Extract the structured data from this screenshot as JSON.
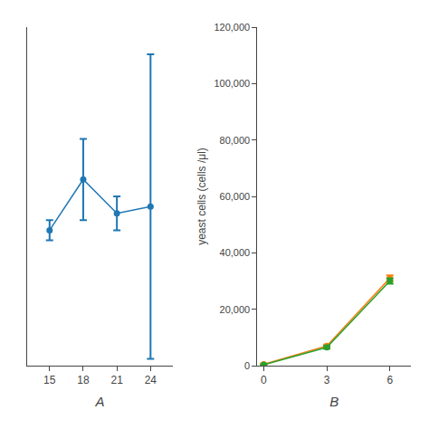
{
  "chart_data": [
    {
      "type": "line",
      "xlabel": "A",
      "x": [
        15,
        18,
        21,
        24
      ],
      "values": [
        100000,
        115000,
        105000,
        107000
      ],
      "error_low": [
        3000,
        12000,
        5000,
        45000
      ],
      "error_high": [
        3000,
        12000,
        5000,
        45000
      ],
      "xlim": [
        13,
        26
      ],
      "ylim": [
        60000,
        160000
      ],
      "xticks": [
        15,
        18,
        21,
        24
      ],
      "tick_labels": "x",
      "marker": "circle",
      "line_style": "solid",
      "grid": false
    },
    {
      "type": "line",
      "xlabel": "B",
      "ylabel": "yeast cells (cells /μl)",
      "x": [
        0,
        3,
        6
      ],
      "series": [
        {
          "values": [
            500,
            7000,
            31000
          ],
          "error": [
            200,
            500,
            1000
          ]
        },
        {
          "values": [
            300,
            6500,
            30000
          ],
          "error": [
            200,
            500,
            1000
          ]
        }
      ],
      "xlim": [
        -0.3,
        7
      ],
      "ylim": [
        0,
        120000
      ],
      "xticks": [
        0,
        3,
        6
      ],
      "yticks": [
        0,
        {
          "value": 20000,
          "label": "20,000"
        },
        {
          "value": 40000,
          "label": "40,000"
        },
        {
          "value": 60000,
          "label": "60,000"
        },
        {
          "value": 80000,
          "label": "80,000"
        },
        {
          "value": 100000,
          "label": "100,000"
        },
        {
          "value": 120000,
          "label": "120,000"
        }
      ],
      "marker": "circle",
      "line_style": "solid",
      "grid": false
    }
  ]
}
